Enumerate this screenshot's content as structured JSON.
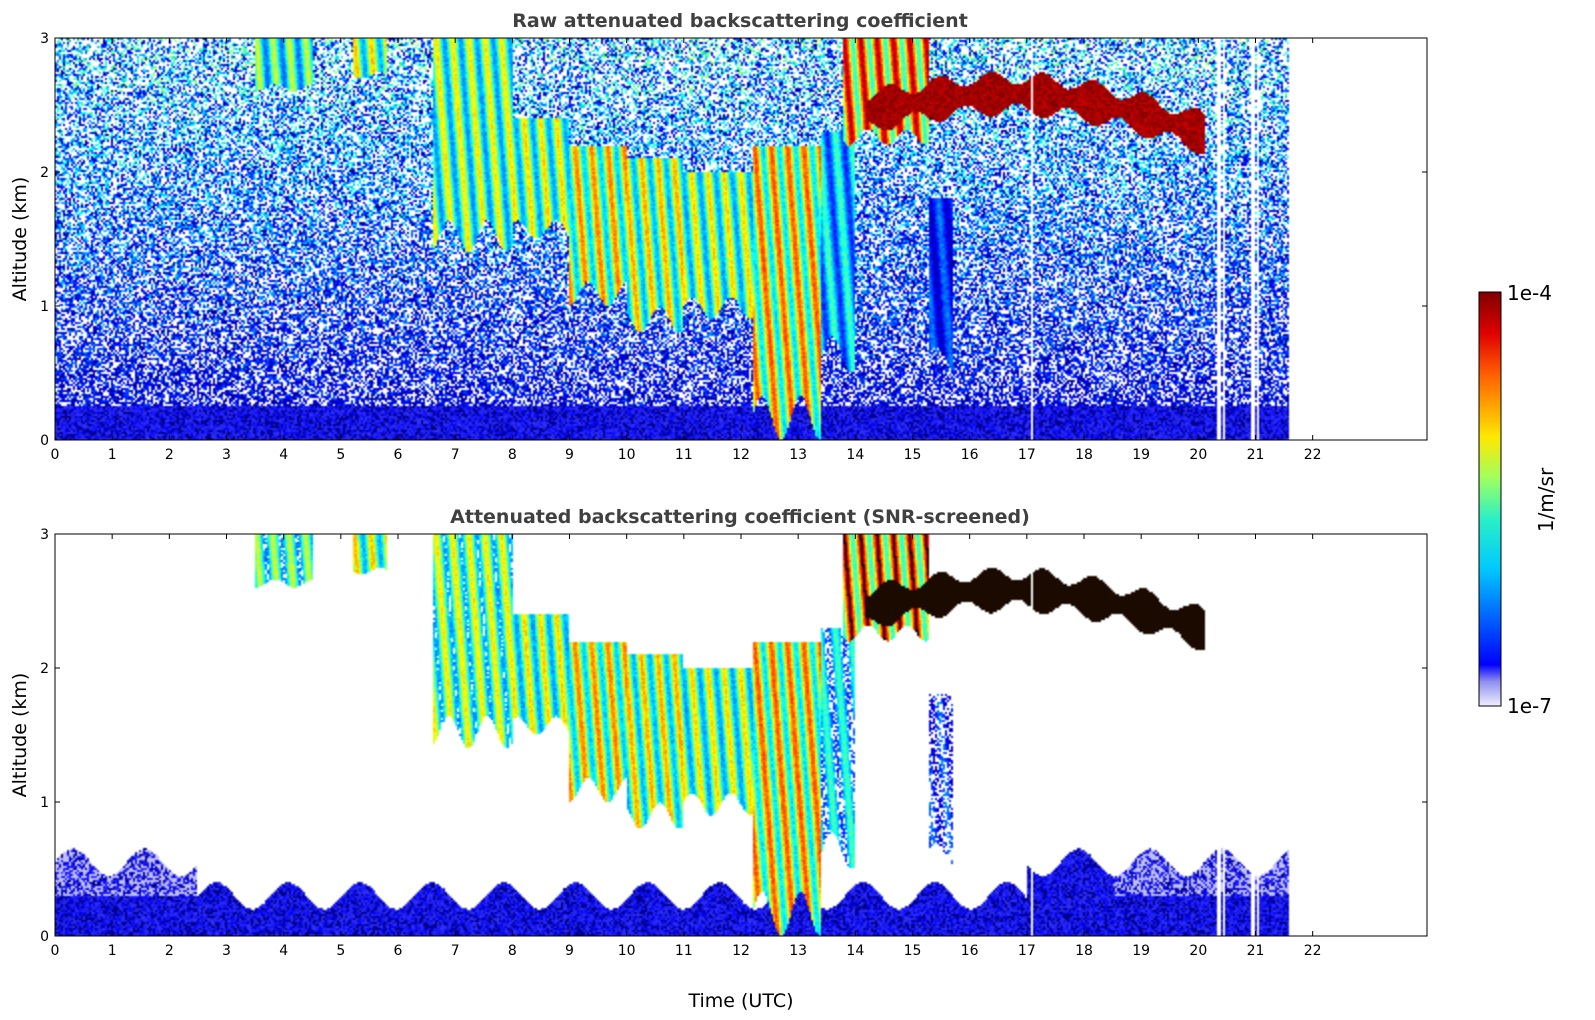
{
  "chart_data": [
    {
      "type": "heatmap",
      "title": "Raw attenuated backscattering coefficient",
      "xlabel": "",
      "ylabel": "Altitude (km)",
      "xlim": [
        0,
        24
      ],
      "ylim": [
        0,
        3
      ],
      "x_ticks": [
        "0",
        "1",
        "2",
        "3",
        "4",
        "5",
        "6",
        "7",
        "8",
        "9",
        "10",
        "11",
        "12",
        "13",
        "14",
        "15",
        "16",
        "17",
        "18",
        "19",
        "20",
        "21",
        "22"
      ],
      "y_ticks": [
        "0",
        "1",
        "2",
        "3"
      ],
      "screened": false,
      "data_end_hour": 21.6,
      "features": [
        {
          "name": "boundary-layer",
          "t0": 0,
          "t1": 21.6,
          "top_km": 0.45,
          "level": 0.08
        },
        {
          "name": "cloud-streak",
          "t0": 3.5,
          "t1": 4.5,
          "top_km": 3.0,
          "bottom_km": 2.6,
          "level": 0.62
        },
        {
          "name": "cloud-streak",
          "t0": 5.2,
          "t1": 5.8,
          "top_km": 3.0,
          "bottom_km": 2.7,
          "level": 0.72
        },
        {
          "name": "fall-streak",
          "t0": 6.6,
          "t1": 8.0,
          "top_km": 3.0,
          "bottom_km": 1.4,
          "level": 0.68
        },
        {
          "name": "fall-streak",
          "t0": 8.0,
          "t1": 9.0,
          "top_km": 2.4,
          "bottom_km": 1.5,
          "level": 0.7
        },
        {
          "name": "fall-streak",
          "t0": 9.0,
          "t1": 10.0,
          "top_km": 2.2,
          "bottom_km": 1.0,
          "level": 0.78
        },
        {
          "name": "fall-streak",
          "t0": 10.0,
          "t1": 11.0,
          "top_km": 2.1,
          "bottom_km": 0.8,
          "level": 0.74
        },
        {
          "name": "fall-streak",
          "t0": 11.0,
          "t1": 12.2,
          "top_km": 2.0,
          "bottom_km": 0.9,
          "level": 0.7
        },
        {
          "name": "precipitation-core",
          "t0": 12.2,
          "t1": 13.4,
          "top_km": 2.2,
          "bottom_km": 0.0,
          "level": 0.82
        },
        {
          "name": "precipitation-tail",
          "t0": 13.4,
          "t1": 14.0,
          "top_km": 2.3,
          "bottom_km": 0.5,
          "level": 0.5
        },
        {
          "name": "cloud-top",
          "t0": 13.8,
          "t1": 15.3,
          "top_km": 3.0,
          "bottom_km": 2.2,
          "level": 0.95
        },
        {
          "name": "faint-streak",
          "t0": 15.3,
          "t1": 15.7,
          "top_km": 1.8,
          "bottom_km": 0.5,
          "level": 0.32
        },
        {
          "name": "cloud-layer",
          "t0": 14.2,
          "t1": 20.1,
          "top_km": 2.75,
          "bottom_km": 2.2,
          "level": 0.97
        }
      ]
    },
    {
      "type": "heatmap",
      "title": "Attenuated backscattering coefficient (SNR-screened)",
      "xlabel": "Time (UTC)",
      "ylabel": "Altitude (km)",
      "xlim": [
        0,
        24
      ],
      "ylim": [
        0,
        3
      ],
      "x_ticks": [
        "0",
        "1",
        "2",
        "3",
        "4",
        "5",
        "6",
        "7",
        "8",
        "9",
        "10",
        "11",
        "12",
        "13",
        "14",
        "15",
        "16",
        "17",
        "18",
        "19",
        "20",
        "21",
        "22"
      ],
      "y_ticks": [
        "0",
        "1",
        "2",
        "3"
      ],
      "screened": true,
      "data_end_hour": 21.6
    }
  ],
  "colorbar": {
    "label": "1/m/sr",
    "max_label": "1e-4",
    "min_label": "1e-7",
    "colormap": "jet"
  },
  "colors": {
    "saturated": "#1a0a00",
    "background": "#ffffff"
  }
}
